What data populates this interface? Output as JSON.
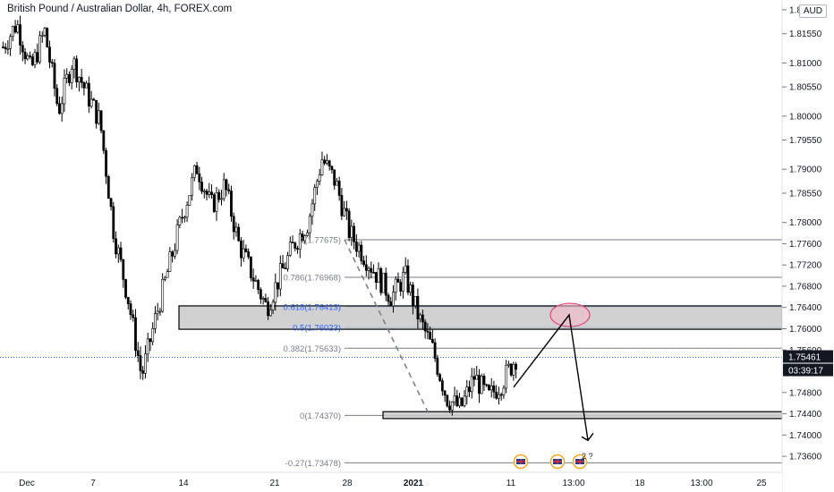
{
  "header": {
    "title": "British Pound / Australian Dollar, 4h, FOREX.com",
    "currency": "AUD"
  },
  "price_axis": {
    "ticks": [
      "1.82000",
      "1.81550",
      "1.81000",
      "1.80550",
      "1.80000",
      "1.79550",
      "1.79000",
      "1.78550",
      "1.78000",
      "1.77600",
      "1.77200",
      "1.76800",
      "1.76400",
      "1.76000",
      "1.75600",
      "1.74800",
      "1.74400",
      "1.74000",
      "1.73600"
    ],
    "last_price": "1.75461",
    "countdown": "03:39:17"
  },
  "time_axis": {
    "labels": [
      "Dec",
      "7",
      "14",
      "21",
      "28",
      "2021",
      "11",
      "13:00",
      "18",
      "13:00",
      "25"
    ]
  },
  "fib_levels": [
    {
      "label": "1(1.77675)",
      "value": 1.77675,
      "color": "#787b86"
    },
    {
      "label": "0.786(1.76968)",
      "value": 1.76968,
      "color": "#787b86"
    },
    {
      "label": "0.618(1.76413)",
      "value": 1.76413,
      "color": "#2962ff"
    },
    {
      "label": "0.5(1.76023)",
      "value": 1.76023,
      "color": "#2962ff"
    },
    {
      "label": "0.382(1.75633)",
      "value": 1.75633,
      "color": "#787b86"
    },
    {
      "label": "0(1.74370)",
      "value": 1.7437,
      "color": "#787b86"
    },
    {
      "label": "-0.27(1.73478)",
      "value": 1.73478,
      "color": "#787b86"
    }
  ],
  "event_markers": {
    "count_label": "2 ?"
  },
  "colors": {
    "candle": "#000000",
    "zone_fill": "#c9c9c9",
    "ellipse_stroke": "#e0457b",
    "ellipse_fill": "#f3b8c8",
    "last_price_box": "#131722",
    "fib_blue": "#2962ff"
  },
  "chart_data": {
    "type": "candlestick",
    "symbol": "GBPAUD",
    "timeframe": "4h",
    "close_path": [
      1.813,
      1.8175,
      1.8085,
      1.816,
      1.801,
      1.8105,
      1.8045,
      1.799,
      1.778,
      1.766,
      1.751,
      1.762,
      1.772,
      1.782,
      1.7905,
      1.783,
      1.787,
      1.776,
      1.77,
      1.764,
      1.77,
      1.776,
      1.78,
      1.792,
      1.7875,
      1.778,
      1.774,
      1.77,
      1.766,
      1.77,
      1.762,
      1.756,
      1.747,
      1.745,
      1.751,
      1.747,
      1.75,
      1.7546
    ],
    "zones": [
      {
        "name": "upper zone",
        "top": 1.7643,
        "bottom": 1.7599
      },
      {
        "name": "lower zone",
        "top": 1.7444,
        "bottom": 1.7431
      }
    ],
    "projection": [
      {
        "label": "start",
        "value": 1.749
      },
      {
        "label": "peak",
        "value": 1.7626
      },
      {
        "label": "target",
        "value": 1.739
      }
    ],
    "y_range": [
      1.734,
      1.821
    ]
  }
}
